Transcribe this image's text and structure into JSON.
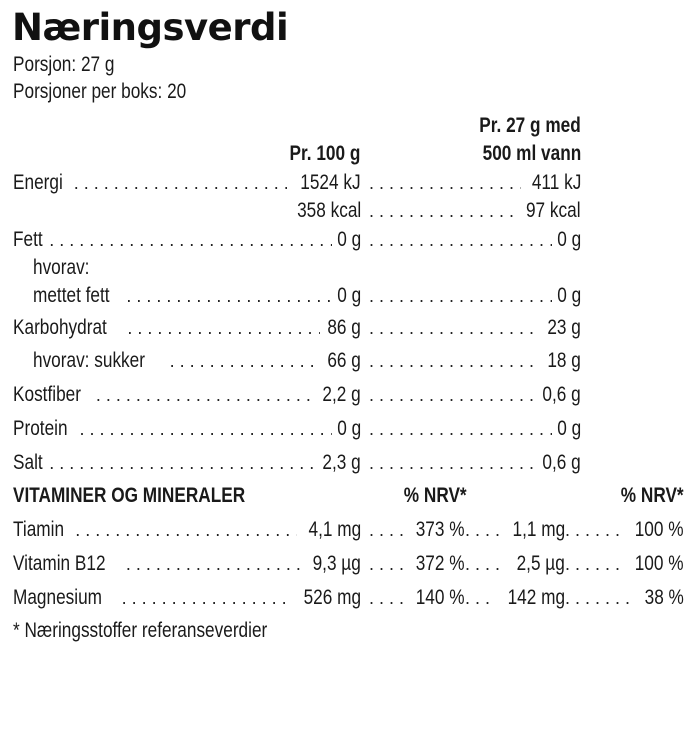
{
  "title": "Næringsverdi",
  "meta": {
    "serving": "Porsjon: 27 g",
    "servings_per_box": "Porsjoner per boks: 20"
  },
  "headers": {
    "col1": "Pr. 100 g",
    "col2_line1": "Pr. 27 g med",
    "col2_line2": "500 ml vann"
  },
  "nutrients": [
    {
      "label": "Energi",
      "per100": "1524 kJ",
      "perServing": "411 kJ",
      "indent": false
    },
    {
      "label": "",
      "per100": "358 kcal",
      "perServing": "97 kcal",
      "indent": false
    },
    {
      "label": "Fett",
      "per100": "0 g",
      "perServing": "0 g",
      "indent": false
    },
    {
      "label": "hvorav:",
      "per100": "",
      "perServing": "",
      "indent": true
    },
    {
      "label": "mettet fett",
      "per100": "0 g",
      "perServing": "0 g",
      "indent": true
    },
    {
      "label": "Karbohydrat",
      "per100": "86 g",
      "perServing": "23 g",
      "indent": false
    },
    {
      "label": "hvorav: sukker",
      "per100": "66 g",
      "perServing": "18 g",
      "indent": true
    },
    {
      "label": "Kostfiber",
      "per100": "2,2 g",
      "perServing": "0,6 g",
      "indent": false
    },
    {
      "label": "Protein",
      "per100": "0 g",
      "perServing": "0 g",
      "indent": false
    },
    {
      "label": "Salt",
      "per100": "2,3 g",
      "perServing": "0,6 g",
      "indent": false
    }
  ],
  "vitamins": {
    "heading": "VITAMINER OG MINERALER",
    "nrv1": "% NRV*",
    "nrv2": "% NRV*",
    "rows": [
      {
        "label": "Tiamin",
        "per100": "4,1 mg",
        "nrv100": "373 %",
        "perServing": "1,1 mg",
        "nrvServing": "100 %"
      },
      {
        "label": "Vitamin B12",
        "per100": "9,3 µg",
        "nrv100": "372 %",
        "perServing": "2,5 µg",
        "nrvServing": "100 %"
      },
      {
        "label": "Magnesium",
        "per100": "526 mg",
        "nrv100": "140 %",
        "perServing": "142 mg",
        "nrvServing": "38 %"
      }
    ]
  },
  "footnote": "* Næringsstoffer referanseverdier"
}
